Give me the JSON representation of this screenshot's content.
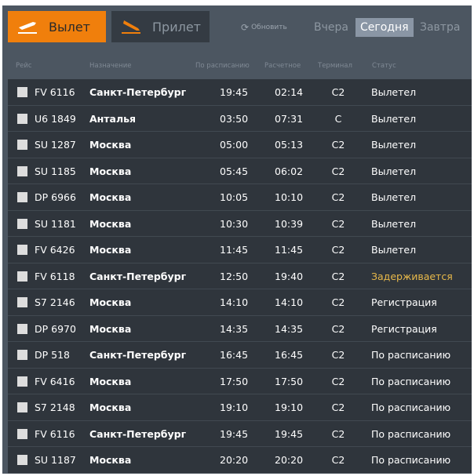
{
  "tabs": {
    "departure": "Вылет",
    "arrival": "Прилет"
  },
  "refresh": "Обновить",
  "days": [
    "Вчера",
    "Сегодня",
    "Завтра"
  ],
  "active_day": "Сегодня",
  "columns": [
    "Рейс",
    "Назначение",
    "По расписанию",
    "Расчетное",
    "Терминал",
    "Статус"
  ],
  "colors": {
    "accent": "#f07f0c",
    "delayed": "#e8b94a"
  },
  "flights": [
    {
      "airline_icon": "rusline-logo",
      "flight": "FV 6116",
      "dest": "Санкт-Петербург",
      "sched": "19:45",
      "est": "02:14",
      "term": "C2",
      "status": "Вылетел"
    },
    {
      "airline_icon": "ural-logo",
      "flight": "U6 1849",
      "dest": "Анталья",
      "sched": "03:50",
      "est": "07:31",
      "term": "C",
      "status": "Вылетел"
    },
    {
      "airline_icon": "aeroflot-logo",
      "flight": "SU 1287",
      "dest": "Москва",
      "sched": "05:00",
      "est": "05:13",
      "term": "C2",
      "status": "Вылетел"
    },
    {
      "airline_icon": "aeroflot-logo",
      "flight": "SU 1185",
      "dest": "Москва",
      "sched": "05:45",
      "est": "06:02",
      "term": "C2",
      "status": "Вылетел"
    },
    {
      "airline_icon": "pobeda-logo",
      "flight": "DP 6966",
      "dest": "Москва",
      "sched": "10:05",
      "est": "10:10",
      "term": "C2",
      "status": "Вылетел"
    },
    {
      "airline_icon": "aeroflot-logo",
      "flight": "SU 1181",
      "dest": "Москва",
      "sched": "10:30",
      "est": "10:39",
      "term": "C2",
      "status": "Вылетел"
    },
    {
      "airline_icon": "rusline-logo",
      "flight": "FV 6426",
      "dest": "Москва",
      "sched": "11:45",
      "est": "11:45",
      "term": "C2",
      "status": "Вылетел"
    },
    {
      "airline_icon": "rusline-logo",
      "flight": "FV 6118",
      "dest": "Санкт-Петербург",
      "sched": "12:50",
      "est": "19:40",
      "term": "C2",
      "status": "Задерживается"
    },
    {
      "airline_icon": "s7-logo",
      "flight": "S7 2146",
      "dest": "Москва",
      "sched": "14:10",
      "est": "14:10",
      "term": "C2",
      "status": "Регистрация"
    },
    {
      "airline_icon": "pobeda-logo",
      "flight": "DP 6970",
      "dest": "Москва",
      "sched": "14:35",
      "est": "14:35",
      "term": "C2",
      "status": "Регистрация"
    },
    {
      "airline_icon": "pobeda-logo",
      "flight": "DP 518",
      "dest": "Санкт-Петербург",
      "sched": "16:45",
      "est": "16:45",
      "term": "C2",
      "status": "По расписанию"
    },
    {
      "airline_icon": "rusline-logo",
      "flight": "FV 6416",
      "dest": "Москва",
      "sched": "17:50",
      "est": "17:50",
      "term": "C2",
      "status": "По расписанию"
    },
    {
      "airline_icon": "s7-logo",
      "flight": "S7 2148",
      "dest": "Москва",
      "sched": "19:10",
      "est": "19:10",
      "term": "C2",
      "status": "По расписанию"
    },
    {
      "airline_icon": "rusline-logo",
      "flight": "FV 6116",
      "dest": "Санкт-Петербург",
      "sched": "19:45",
      "est": "19:45",
      "term": "C2",
      "status": "По расписанию"
    },
    {
      "airline_icon": "aeroflot-logo",
      "flight": "SU 1187",
      "dest": "Москва",
      "sched": "20:20",
      "est": "20:20",
      "term": "C2",
      "status": "По расписанию"
    }
  ]
}
